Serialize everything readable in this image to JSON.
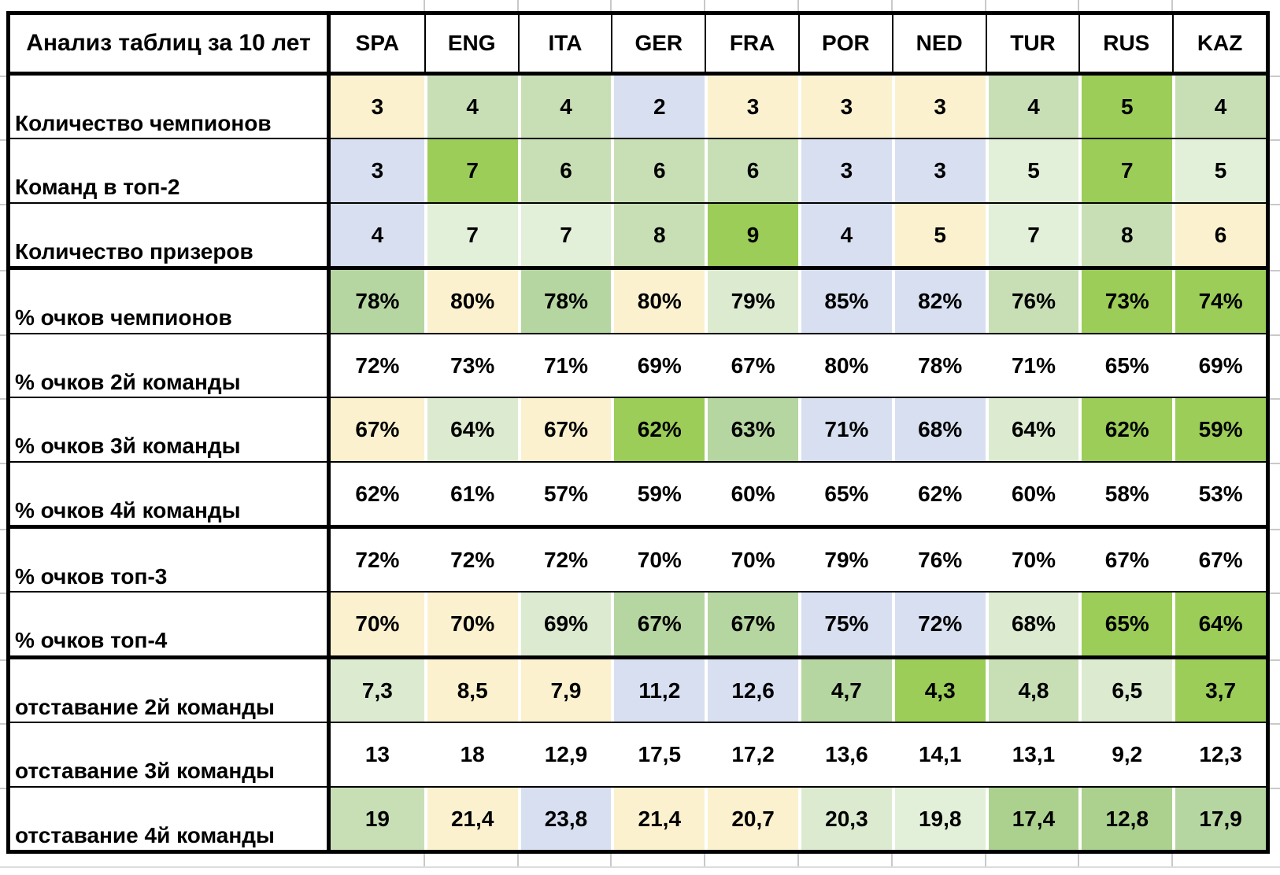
{
  "title": "Анализ таблиц за 10 лет",
  "columns": [
    "SPA",
    "ENG",
    "ITA",
    "GER",
    "FRA",
    "POR",
    "NED",
    "TUR",
    "RUS",
    "KAZ"
  ],
  "palette": {
    "W": "#FFFFFF",
    "Y": "#FBF1CE",
    "B": "#D8DFF0",
    "G1": "#9BCD58",
    "G2": "#ACD18F",
    "G3": "#B6D6A1",
    "G4": "#C8DFB6",
    "G5": "#DCEBD0",
    "G6": "#E2EFD9",
    "border_black": "#000000",
    "gridline_gray": "#C9C9C9",
    "gridline_light": "#DCDCDC",
    "text": "#000000"
  },
  "rows": [
    {
      "label": "Количество чемпионов",
      "thick_below": false,
      "values": [
        "3",
        "4",
        "4",
        "2",
        "3",
        "3",
        "3",
        "4",
        "5",
        "4"
      ],
      "fills": [
        "Y",
        "G4",
        "G4",
        "B",
        "Y",
        "Y",
        "Y",
        "G4",
        "G1",
        "G4"
      ]
    },
    {
      "label": "Команд в топ-2",
      "thick_below": false,
      "values": [
        "3",
        "7",
        "6",
        "6",
        "6",
        "3",
        "3",
        "5",
        "7",
        "5"
      ],
      "fills": [
        "B",
        "G1",
        "G4",
        "G4",
        "G4",
        "B",
        "B",
        "G6",
        "G1",
        "G6"
      ]
    },
    {
      "label": "Количество призеров",
      "thick_below": true,
      "values": [
        "4",
        "7",
        "7",
        "8",
        "9",
        "4",
        "5",
        "7",
        "8",
        "6"
      ],
      "fills": [
        "B",
        "G6",
        "G6",
        "G4",
        "G1",
        "B",
        "Y",
        "G6",
        "G4",
        "Y"
      ]
    },
    {
      "label": "% очков чемпионов",
      "thick_below": false,
      "values": [
        "78%",
        "80%",
        "78%",
        "80%",
        "79%",
        "85%",
        "82%",
        "76%",
        "73%",
        "74%"
      ],
      "fills": [
        "G3",
        "Y",
        "G3",
        "Y",
        "G5",
        "B",
        "B",
        "G4",
        "G1",
        "G1"
      ]
    },
    {
      "label": "% очков 2й команды",
      "thick_below": false,
      "values": [
        "72%",
        "73%",
        "71%",
        "69%",
        "67%",
        "80%",
        "78%",
        "71%",
        "65%",
        "69%"
      ],
      "fills": [
        "W",
        "W",
        "W",
        "W",
        "W",
        "W",
        "W",
        "W",
        "W",
        "W"
      ]
    },
    {
      "label": "% очков 3й команды",
      "thick_below": false,
      "values": [
        "67%",
        "64%",
        "67%",
        "62%",
        "63%",
        "71%",
        "68%",
        "64%",
        "62%",
        "59%"
      ],
      "fills": [
        "Y",
        "G5",
        "Y",
        "G1",
        "G3",
        "B",
        "B",
        "G5",
        "G1",
        "G1"
      ]
    },
    {
      "label": "% очков 4й команды",
      "thick_below": true,
      "values": [
        "62%",
        "61%",
        "57%",
        "59%",
        "60%",
        "65%",
        "62%",
        "60%",
        "58%",
        "53%"
      ],
      "fills": [
        "W",
        "W",
        "W",
        "W",
        "W",
        "W",
        "W",
        "W",
        "W",
        "W"
      ]
    },
    {
      "label": "% очков топ-3",
      "thick_below": false,
      "values": [
        "72%",
        "72%",
        "72%",
        "70%",
        "70%",
        "79%",
        "76%",
        "70%",
        "67%",
        "67%"
      ],
      "fills": [
        "W",
        "W",
        "W",
        "W",
        "W",
        "W",
        "W",
        "W",
        "W",
        "W"
      ]
    },
    {
      "label": "% очков топ-4",
      "thick_below": true,
      "values": [
        "70%",
        "70%",
        "69%",
        "67%",
        "67%",
        "75%",
        "72%",
        "68%",
        "65%",
        "64%"
      ],
      "fills": [
        "Y",
        "Y",
        "G5",
        "G3",
        "G3",
        "B",
        "B",
        "G5",
        "G1",
        "G1"
      ]
    },
    {
      "label": "отставание 2й команды",
      "thick_below": false,
      "values": [
        "7,3",
        "8,5",
        "7,9",
        "11,2",
        "12,6",
        "4,7",
        "4,3",
        "4,8",
        "6,5",
        "3,7"
      ],
      "fills": [
        "G5",
        "Y",
        "Y",
        "B",
        "B",
        "G3",
        "G1",
        "G4",
        "G5",
        "G1"
      ]
    },
    {
      "label": "отставание 3й команды",
      "thick_below": false,
      "values": [
        "13",
        "18",
        "12,9",
        "17,5",
        "17,2",
        "13,6",
        "14,1",
        "13,1",
        "9,2",
        "12,3"
      ],
      "fills": [
        "W",
        "W",
        "W",
        "W",
        "W",
        "W",
        "W",
        "W",
        "W",
        "W"
      ]
    },
    {
      "label": "отставание 4й команды",
      "thick_below": false,
      "values": [
        "19",
        "21,4",
        "23,8",
        "21,4",
        "20,7",
        "20,3",
        "19,8",
        "17,4",
        "12,8",
        "17,9"
      ],
      "fills": [
        "G4",
        "Y",
        "B",
        "Y",
        "Y",
        "G5",
        "G6",
        "G2",
        "G2",
        "G3"
      ]
    }
  ]
}
